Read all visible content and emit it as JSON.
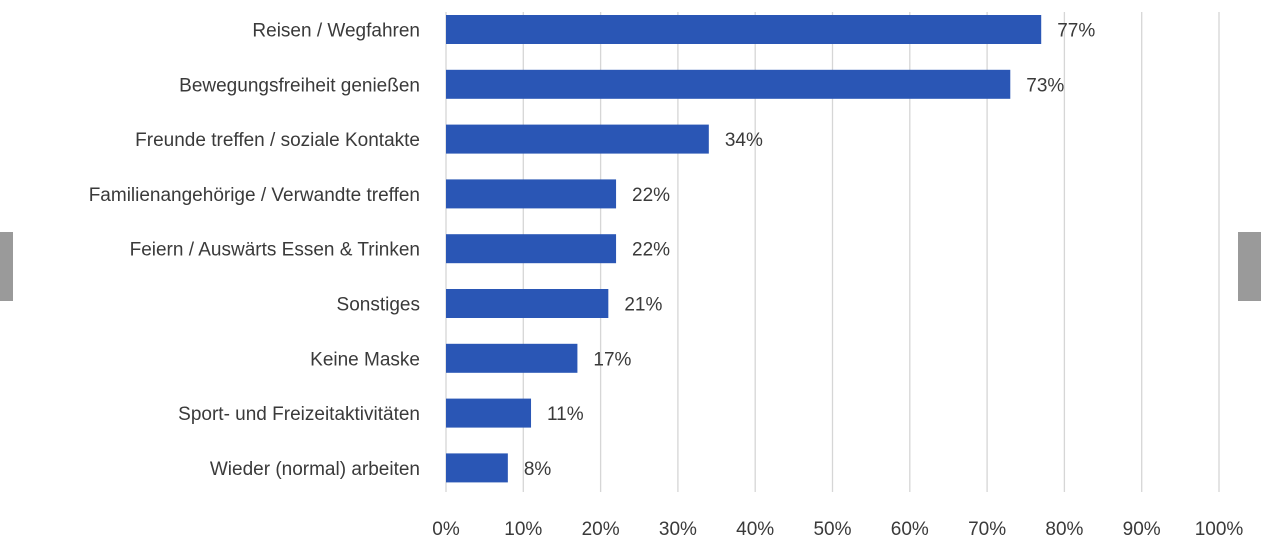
{
  "chart_data": {
    "type": "bar",
    "orientation": "horizontal",
    "categories": [
      "Reisen / Wegfahren",
      "Bewegungsfreiheit genießen",
      "Freunde treffen / soziale Kontakte",
      "Familienangehörige / Verwandte treffen",
      "Feiern / Auswärts Essen & Trinken",
      "Sonstiges",
      "Keine Maske",
      "Sport- und Freizeitaktivitäten",
      "Wieder (normal) arbeiten"
    ],
    "values": [
      77,
      73,
      34,
      22,
      22,
      21,
      17,
      11,
      8
    ],
    "value_labels": [
      "77%",
      "73%",
      "34%",
      "22%",
      "22%",
      "21%",
      "17%",
      "11%",
      "8%"
    ],
    "xticks": [
      "0%",
      "10%",
      "20%",
      "30%",
      "40%",
      "50%",
      "60%",
      "70%",
      "80%",
      "90%",
      "100%"
    ],
    "xlim": [
      0,
      100
    ],
    "grid": "vertical",
    "bar_color": "#2a56b5",
    "title": "",
    "xlabel": "",
    "ylabel": ""
  },
  "colors": {
    "bar": "#2a56b5",
    "grid": "#d6d6d6",
    "text": "#3a3a3a",
    "nav_arrow": "#9a9a9a"
  }
}
